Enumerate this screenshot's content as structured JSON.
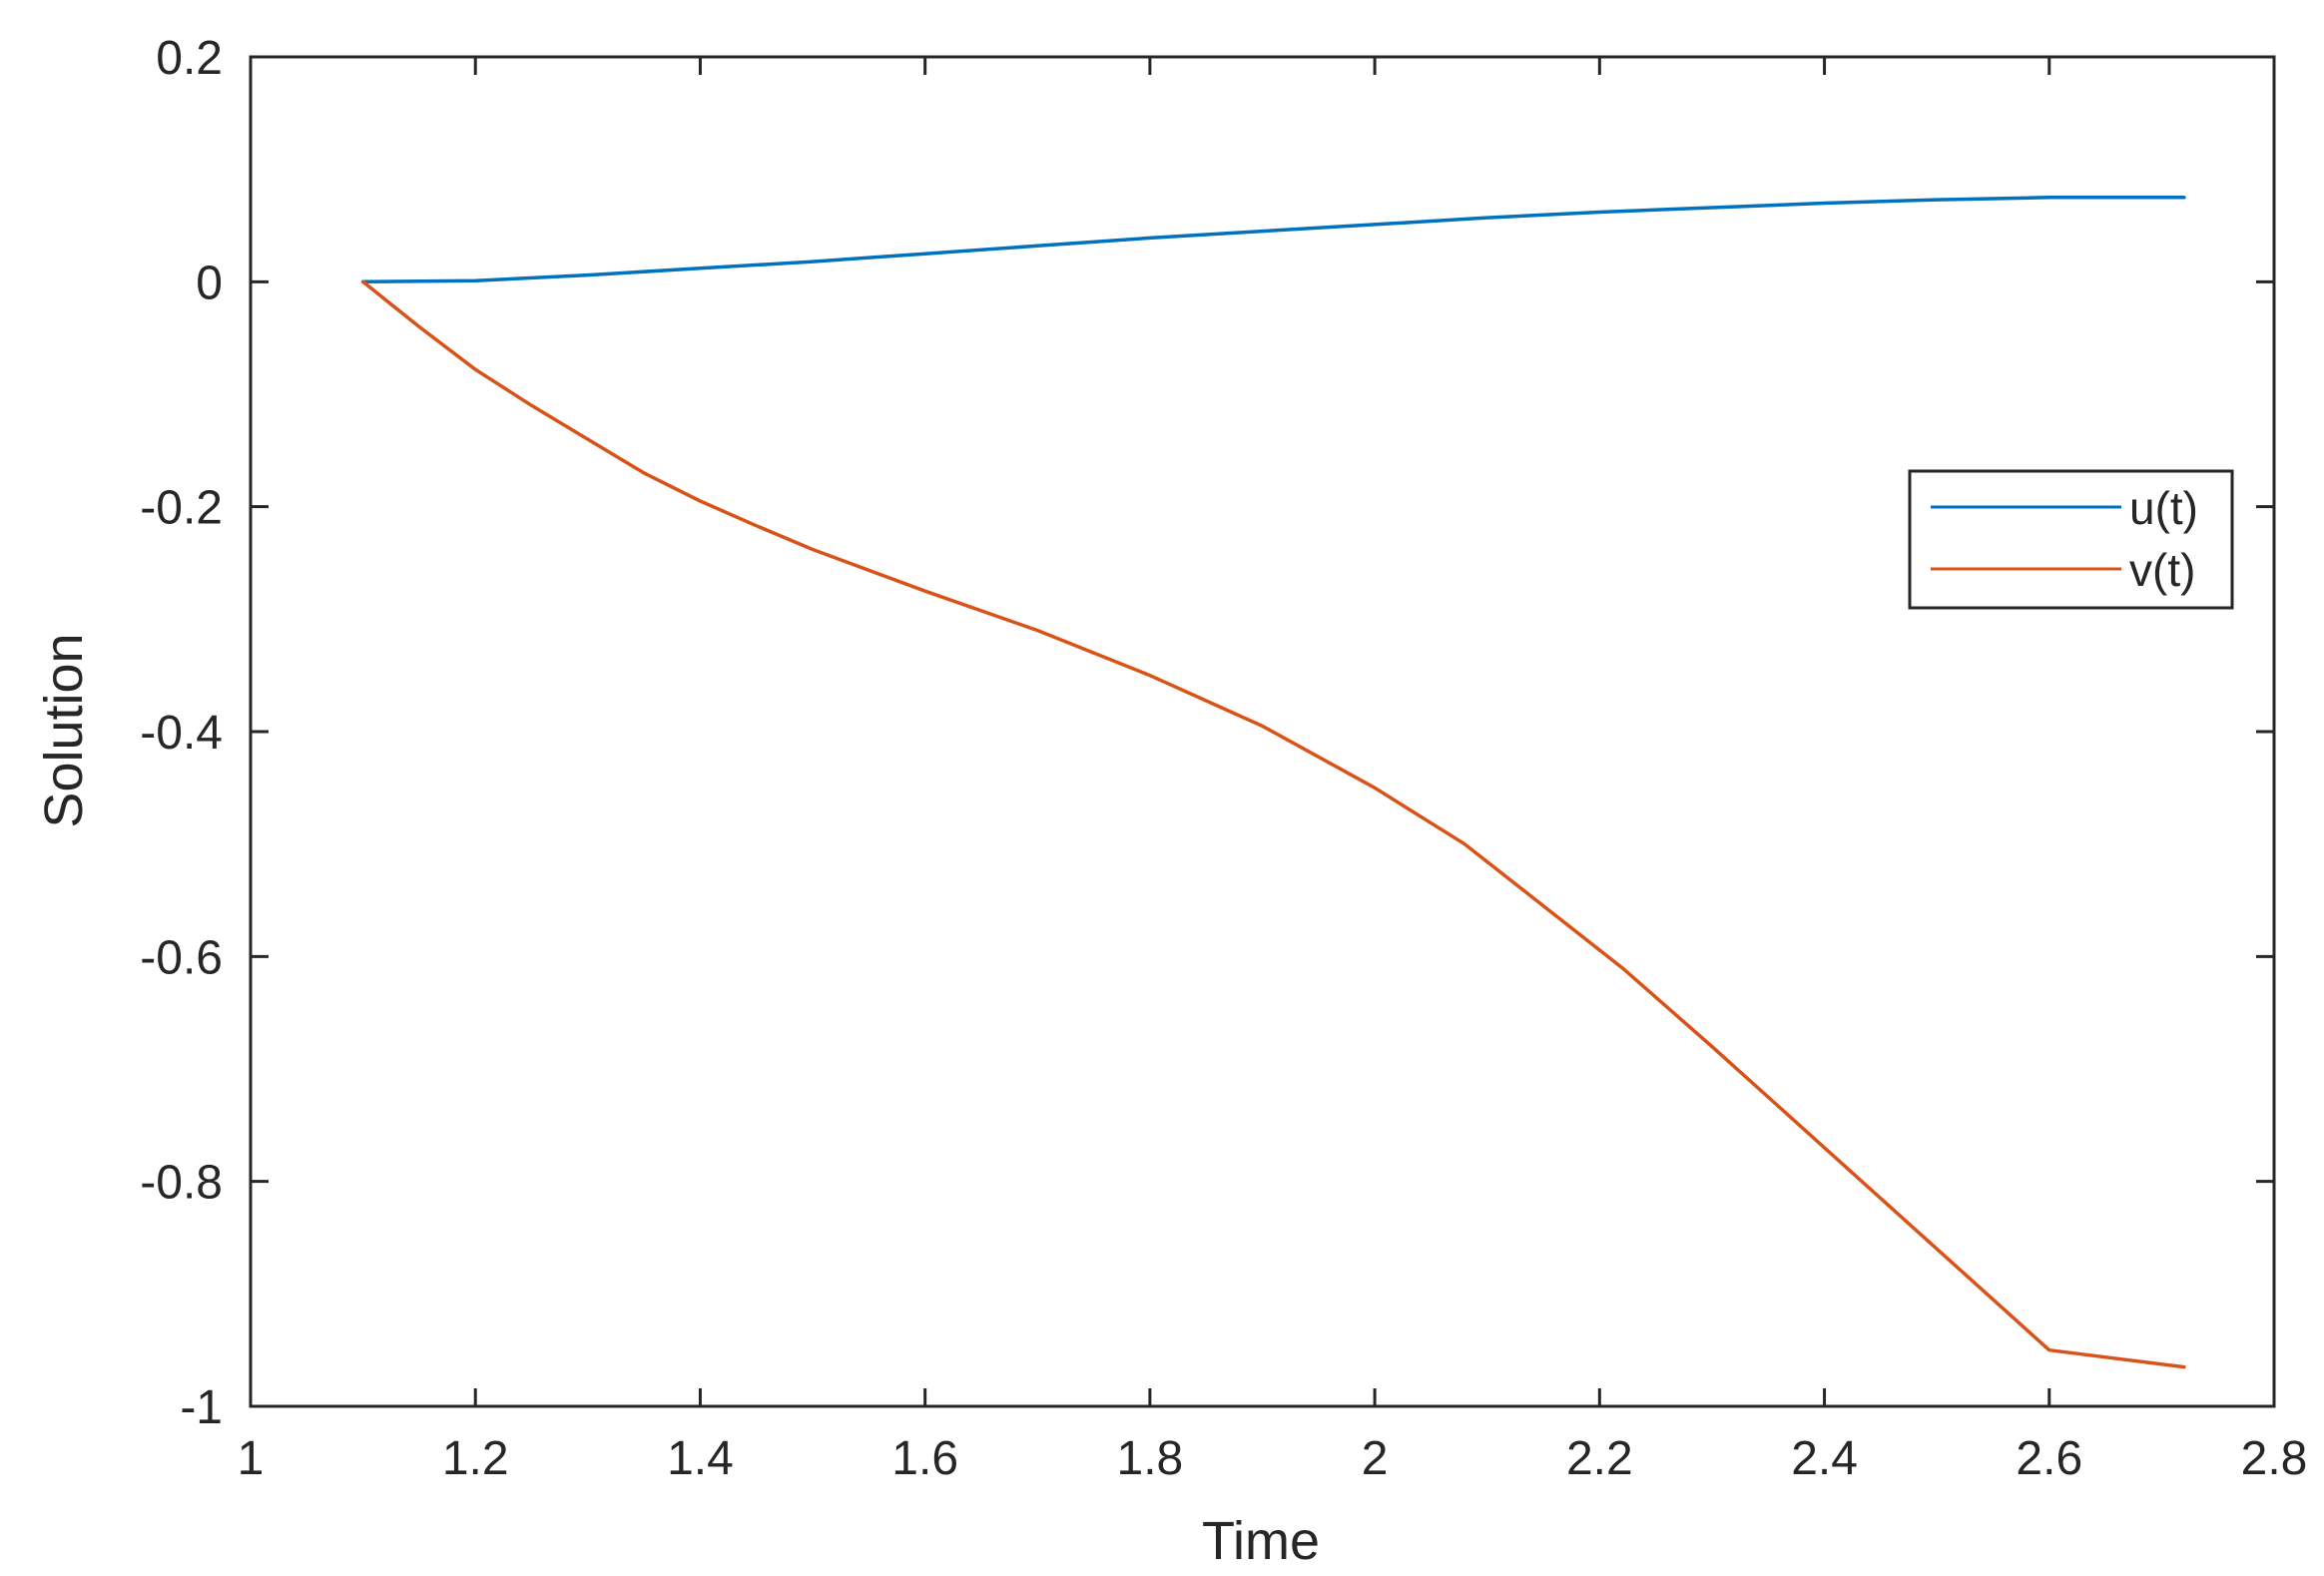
{
  "chart_data": {
    "type": "line",
    "title": "",
    "xlabel": "Time",
    "ylabel": "Solution",
    "xlim": [
      1,
      2.8
    ],
    "ylim": [
      -1,
      0.2
    ],
    "xticks": [
      1,
      1.2,
      1.4,
      1.6,
      1.8,
      2,
      2.2,
      2.4,
      2.6,
      2.8
    ],
    "xtick_labels": [
      "1",
      "1.2",
      "1.4",
      "1.6",
      "1.8",
      "2",
      "2.2",
      "2.4",
      "2.6",
      "2.8"
    ],
    "yticks": [
      0.2,
      0,
      -0.2,
      -0.4,
      -0.6,
      -0.8,
      -1
    ],
    "ytick_labels": [
      "0.2",
      "0",
      "-0.2",
      "-0.4",
      "-0.6",
      "-0.8",
      "-1"
    ],
    "grid": false,
    "box": true,
    "legend_position": "right",
    "series": [
      {
        "name": "u(t)",
        "color": "#0072BD",
        "x": [
          1.1,
          1.2,
          1.3,
          1.4,
          1.5,
          1.6,
          1.7,
          1.8,
          1.9,
          2.0,
          2.1,
          2.2,
          2.3,
          2.4,
          2.5,
          2.6,
          2.72
        ],
        "y": [
          0.0,
          0.001,
          0.006,
          0.012,
          0.018,
          0.025,
          0.032,
          0.039,
          0.045,
          0.051,
          0.057,
          0.062,
          0.066,
          0.07,
          0.073,
          0.075,
          0.075
        ]
      },
      {
        "name": "v(t)",
        "color": "#D95319",
        "x": [
          1.1,
          1.15,
          1.2,
          1.25,
          1.3,
          1.35,
          1.4,
          1.45,
          1.5,
          1.6,
          1.7,
          1.8,
          1.9,
          2.0,
          2.08,
          2.15,
          2.22,
          2.3,
          2.4,
          2.5,
          2.6,
          2.72
        ],
        "y": [
          0.0,
          -0.04,
          -0.078,
          -0.11,
          -0.14,
          -0.17,
          -0.195,
          -0.217,
          -0.238,
          -0.275,
          -0.31,
          -0.35,
          -0.395,
          -0.45,
          -0.5,
          -0.555,
          -0.61,
          -0.68,
          -0.77,
          -0.86,
          -0.95,
          -0.965
        ]
      }
    ]
  }
}
